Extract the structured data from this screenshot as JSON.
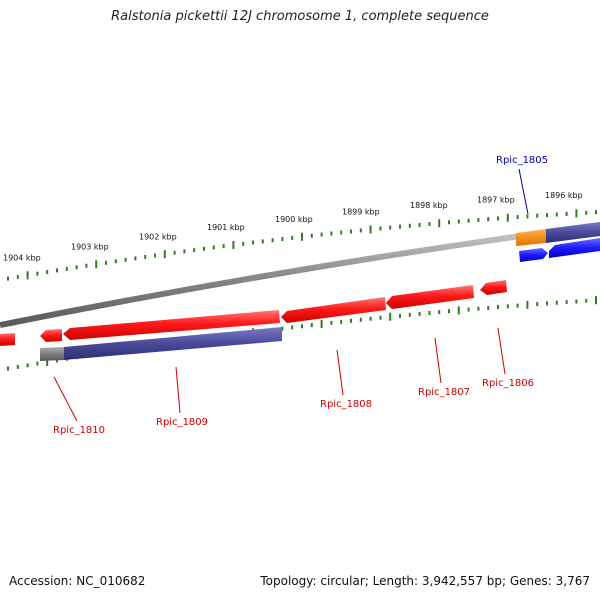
{
  "title": "Ralstonia pickettii 12J chromosome 1, complete sequence",
  "footer": {
    "accession": "Accession: NC_010682",
    "summary": "Topology: circular; Length: 3,942,557 bp; Genes: 3,767"
  },
  "scale_labels": [
    "1904 kbp",
    "1903 kbp",
    "1902 kbp",
    "1901 kbp",
    "1900 kbp",
    "1899 kbp",
    "1898 kbp",
    "1897 kbp",
    "1896 kbp"
  ],
  "genes": [
    {
      "label": "Rpic_1805",
      "color": "#0000aa"
    },
    {
      "label": "Rpic_1806",
      "color": "#cc0000"
    },
    {
      "label": "Rpic_1807",
      "color": "#cc0000"
    },
    {
      "label": "Rpic_1808",
      "color": "#cc0000"
    },
    {
      "label": "Rpic_1809",
      "color": "#cc0000"
    },
    {
      "label": "Rpic_1810",
      "color": "#cc0000"
    }
  ],
  "colors": {
    "backbone": "#8c8c8c",
    "tick": "#2e7d1a",
    "gene_red": "#ff1a1a",
    "gene_blue": "#1a1aff",
    "cds_purple": "#4a4a9a",
    "orange": "#ff8c00",
    "gray": "#777777"
  }
}
